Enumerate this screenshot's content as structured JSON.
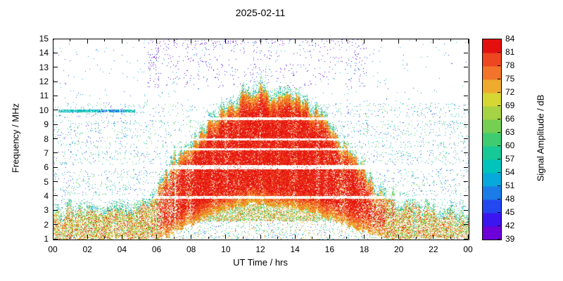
{
  "chart_data": {
    "type": "heatmap",
    "title": "2025-02-11",
    "xlabel": "UT Time / hrs",
    "ylabel": "Frequency / MHz",
    "colorbar_label": "Signal Amplitude / dB",
    "x_range": [
      0,
      24
    ],
    "y_range": [
      1,
      15
    ],
    "x_tick_step_hours": 2,
    "x_tick_labels": [
      "00",
      "02",
      "04",
      "06",
      "08",
      "10",
      "12",
      "14",
      "16",
      "18",
      "20",
      "22",
      "00"
    ],
    "y_ticks": [
      1,
      2,
      3,
      4,
      5,
      6,
      7,
      8,
      9,
      10,
      11,
      12,
      13,
      14,
      15
    ],
    "colorbar": {
      "min": 39,
      "max": 84,
      "step": 3,
      "ticks": [
        39,
        42,
        45,
        48,
        51,
        54,
        57,
        60,
        63,
        66,
        69,
        72,
        75,
        78,
        81,
        84
      ],
      "bin_colors": [
        "#6e00d8",
        "#3c16ee",
        "#2448f0",
        "#1b7ce8",
        "#07a8da",
        "#00c4bb",
        "#16c996",
        "#3fcc70",
        "#74cf53",
        "#a6d343",
        "#d7d733",
        "#efab2e",
        "#f1742a",
        "#ee4620",
        "#e41010"
      ]
    },
    "envelope": {
      "hours": [
        0,
        1,
        2,
        3,
        4,
        5,
        6,
        7,
        8,
        9,
        10,
        11,
        12,
        13,
        14,
        15,
        16,
        17,
        18,
        19,
        20,
        21,
        22,
        23,
        24
      ],
      "max_mhz": [
        2.7,
        2.8,
        2.9,
        3.0,
        3.0,
        3.1,
        4.2,
        6.3,
        7.9,
        9.0,
        10.2,
        11.0,
        11.4,
        10.7,
        10.8,
        10.0,
        8.7,
        7.1,
        5.6,
        4.1,
        3.3,
        3.0,
        2.8,
        2.7,
        2.6
      ],
      "absorption_min_mhz": [
        1,
        1,
        1,
        1,
        1,
        1,
        1,
        1.4,
        2.1,
        2.7,
        3.1,
        3.4,
        3.5,
        3.4,
        3.2,
        2.9,
        2.5,
        2.0,
        1.5,
        1.1,
        1,
        1,
        1,
        1,
        1
      ]
    },
    "gap_lines_mhz": [
      {
        "mhz": 3.95,
        "half_width": 0.09
      },
      {
        "mhz": 6.05,
        "half_width": 0.14
      },
      {
        "mhz": 7.3,
        "half_width": 0.07
      },
      {
        "mhz": 8.0,
        "half_width": 0.08
      },
      {
        "mhz": 9.45,
        "half_width": 0.1
      }
    ],
    "features": {
      "purple_speckle": {
        "t_start": 5.5,
        "t_end": 18.1,
        "f_min": 11.6,
        "f_max": 15
      },
      "cyan_line": {
        "f_mhz": 10.0,
        "t_start": 0.3,
        "t_end": 4.7
      }
    }
  }
}
